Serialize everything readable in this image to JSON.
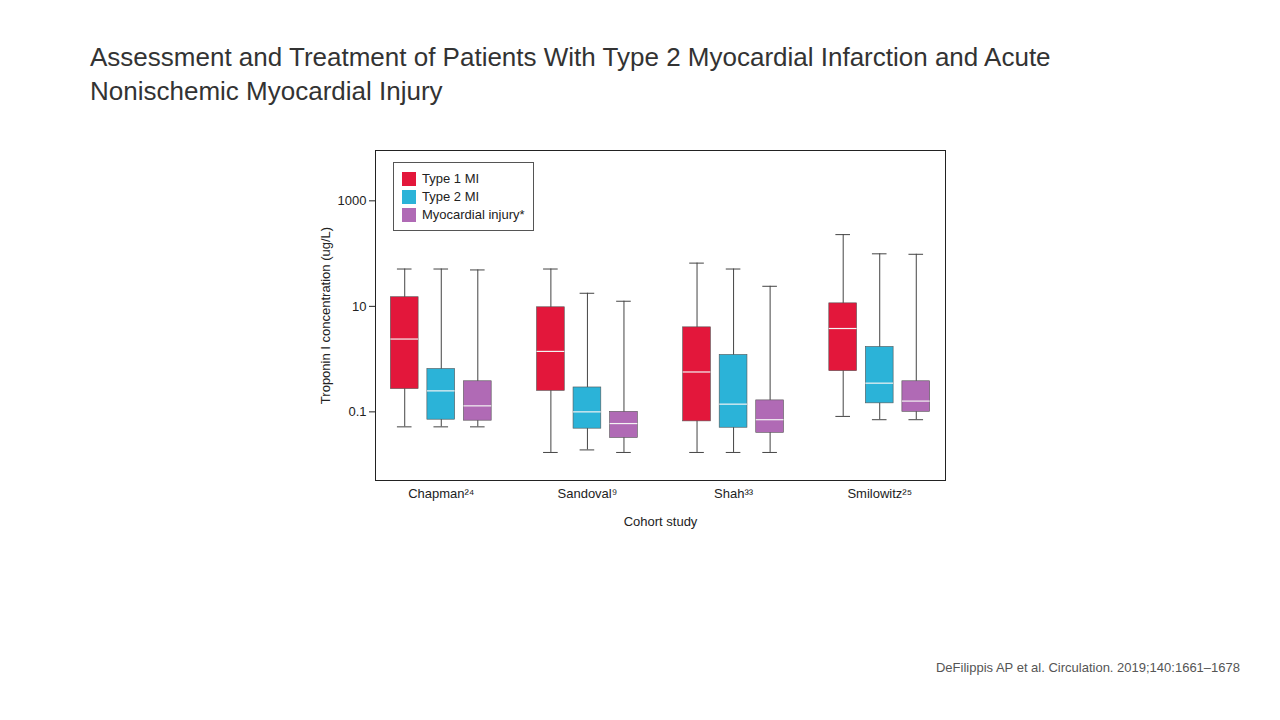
{
  "chart_data": {
    "type": "box",
    "title": "Assessment and Treatment of Patients With Type 2 Myocardial Infarction and Acute Nonischemic Myocardial Injury",
    "xlabel": "Cohort study",
    "ylabel": "Troponin I concentration (ug/L)",
    "caption": "DeFilippis AP et al. Circulation. 2019;140:1661–1678",
    "categories": [
      "Chapman²⁴",
      "Sandoval⁹",
      "Shah³³",
      "Smilowitz²⁵"
    ],
    "log": "y",
    "ylim": [
      0.005,
      9000
    ],
    "yticks": [
      0.1,
      10,
      1000
    ],
    "legend": "upper left",
    "series": [
      {
        "name": "Type 1 MI",
        "color": "#e3173b",
        "min": [
          0.052,
          0.017,
          0.017,
          0.082
        ],
        "q1": [
          0.27,
          0.25,
          0.066,
          0.59
        ],
        "median": [
          2.4,
          1.4,
          0.57,
          3.8
        ],
        "q3": [
          14.9,
          9.6,
          4.0,
          11.4
        ],
        "max": [
          51,
          51,
          66,
          229
        ]
      },
      {
        "name": "Type 2 MI",
        "color": "#2bb3d8",
        "min": [
          0.052,
          0.019,
          0.017,
          0.071
        ],
        "q1": [
          0.071,
          0.048,
          0.05,
          0.145
        ],
        "median": [
          0.25,
          0.1,
          0.14,
          0.35
        ],
        "q3": [
          0.65,
          0.29,
          1.2,
          1.7
        ],
        "max": [
          51,
          17.7,
          51,
          99
        ]
      },
      {
        "name": "Myocardial injury*",
        "color": "#b06ab5",
        "min": [
          0.052,
          0.017,
          0.017,
          0.071
        ],
        "q1": [
          0.068,
          0.032,
          0.04,
          0.1
        ],
        "median": [
          0.13,
          0.06,
          0.071,
          0.16
        ],
        "q3": [
          0.38,
          0.1,
          0.165,
          0.38
        ],
        "max": [
          49,
          12.5,
          24,
          97
        ]
      }
    ]
  }
}
